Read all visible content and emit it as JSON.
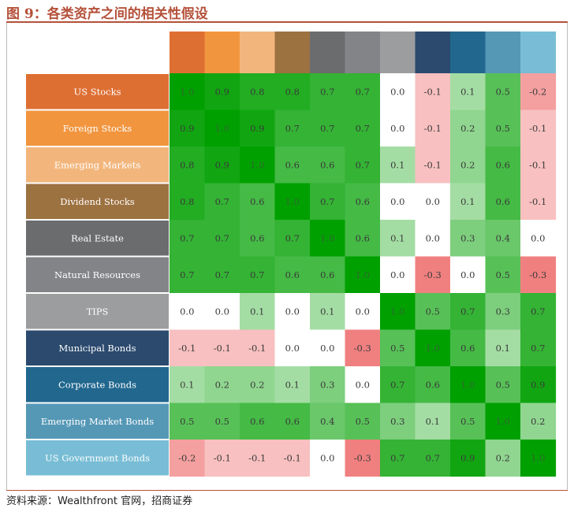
{
  "figure_title": "图 9：各类资产之间的相关性假设",
  "source": "资料来源：Wealthfront 官网，招商证券",
  "chart_data": {
    "type": "heatmap",
    "assets": [
      "US Stocks",
      "Foreign Stocks",
      "Emerging Markets",
      "Dividend Stocks",
      "Real Estate",
      "Natural Resources",
      "TIPS",
      "Municipal Bonds",
      "Corporate Bonds",
      "Emerging Market Bonds",
      "US Government Bonds"
    ],
    "asset_colors": [
      "#de6f33",
      "#f1953e",
      "#f2b67d",
      "#9d7241",
      "#6b6c6e",
      "#838487",
      "#9c9d9f",
      "#2b4a6e",
      "#21678e",
      "#5598b6",
      "#78bdd5"
    ],
    "values": [
      [
        1.0,
        0.9,
        0.8,
        0.8,
        0.7,
        0.7,
        0.0,
        -0.1,
        0.1,
        0.5,
        -0.2
      ],
      [
        0.9,
        1.0,
        0.9,
        0.7,
        0.7,
        0.7,
        0.0,
        -0.1,
        0.2,
        0.5,
        -0.1
      ],
      [
        0.8,
        0.9,
        1.0,
        0.6,
        0.6,
        0.7,
        0.1,
        -0.1,
        0.2,
        0.6,
        -0.1
      ],
      [
        0.8,
        0.7,
        0.6,
        1.0,
        0.7,
        0.6,
        0.0,
        0.0,
        0.1,
        0.6,
        -0.1
      ],
      [
        0.7,
        0.7,
        0.6,
        0.7,
        1.0,
        0.6,
        0.1,
        0.0,
        0.3,
        0.4,
        0.0
      ],
      [
        0.7,
        0.7,
        0.7,
        0.6,
        0.6,
        1.0,
        0.0,
        -0.3,
        0.0,
        0.5,
        -0.3
      ],
      [
        0.0,
        0.0,
        0.1,
        0.0,
        0.1,
        0.0,
        1.0,
        0.5,
        0.7,
        0.3,
        0.7
      ],
      [
        -0.1,
        -0.1,
        -0.1,
        0.0,
        0.0,
        -0.3,
        0.5,
        1.0,
        0.6,
        0.1,
        0.7
      ],
      [
        0.1,
        0.2,
        0.2,
        0.1,
        0.3,
        0.0,
        0.7,
        0.6,
        1.0,
        0.5,
        0.9
      ],
      [
        0.5,
        0.5,
        0.6,
        0.6,
        0.4,
        0.5,
        0.3,
        0.1,
        0.5,
        1.0,
        0.2
      ],
      [
        -0.2,
        -0.1,
        -0.1,
        -0.1,
        0.0,
        -0.3,
        0.7,
        0.7,
        0.9,
        0.2,
        1.0
      ]
    ],
    "value_labels": [
      [
        "1.0",
        "0.9",
        "0.8",
        "0.8",
        "0.7",
        "0.7",
        "0.0",
        "-0.1",
        "0.1",
        "0.5",
        "-0.2"
      ],
      [
        "0.9",
        "1.0",
        "0.9",
        "0.7",
        "0.7",
        "0.7",
        "0.0",
        "-0.1",
        "0.2",
        "0.5",
        "-0.1"
      ],
      [
        "0.8",
        "0.9",
        "1.0",
        "0.6",
        "0.6",
        "0.7",
        "0.1",
        "-0.1",
        "0.2",
        "0.6",
        "-0.1"
      ],
      [
        "0.8",
        "0.7",
        "0.6",
        "1.0",
        "0.7",
        "0.6",
        "0.0",
        "0.0",
        "0.1",
        "0.6",
        "-0.1"
      ],
      [
        "0.7",
        "0.7",
        "0.6",
        "0.7",
        "1.0",
        "0.6",
        "0.1",
        "0.0",
        "0.3",
        "0.4",
        "0.0"
      ],
      [
        "0.7",
        "0.7",
        "0.7",
        "0.6",
        "0.6",
        "1.0",
        "0.0",
        "-0.3",
        "0.0",
        "0.5",
        "-0.3"
      ],
      [
        "0.0",
        "0.0",
        "0.1",
        "0.0",
        "0.1",
        "0.0",
        "1.0",
        "0.5",
        "0.7",
        "0.3",
        "0.7"
      ],
      [
        "-0.1",
        "-0.1",
        "-0.1",
        "0.0",
        "0.0",
        "-0.3",
        "0.5",
        "1.0",
        "0.6",
        "0.1",
        "0.7"
      ],
      [
        "0.1",
        "0.2",
        "0.2",
        "0.1",
        "0.3",
        "0.0",
        "0.7",
        "0.6",
        "1.0",
        "0.5",
        "0.9"
      ],
      [
        "0.5",
        "0.5",
        "0.6",
        "0.6",
        "0.4",
        "0.5",
        "0.3",
        "0.1",
        "0.5",
        "1.0",
        "0.2"
      ],
      [
        "-0.2",
        "-0.1",
        "-0.1",
        "-0.1",
        "0.0",
        "-0.3",
        "0.7",
        "0.7",
        "0.9",
        "0.2",
        "1.0"
      ]
    ],
    "color_scale": {
      "positive": "#00a000",
      "zero": "#ffffff",
      "negative": "#f08080"
    }
  }
}
